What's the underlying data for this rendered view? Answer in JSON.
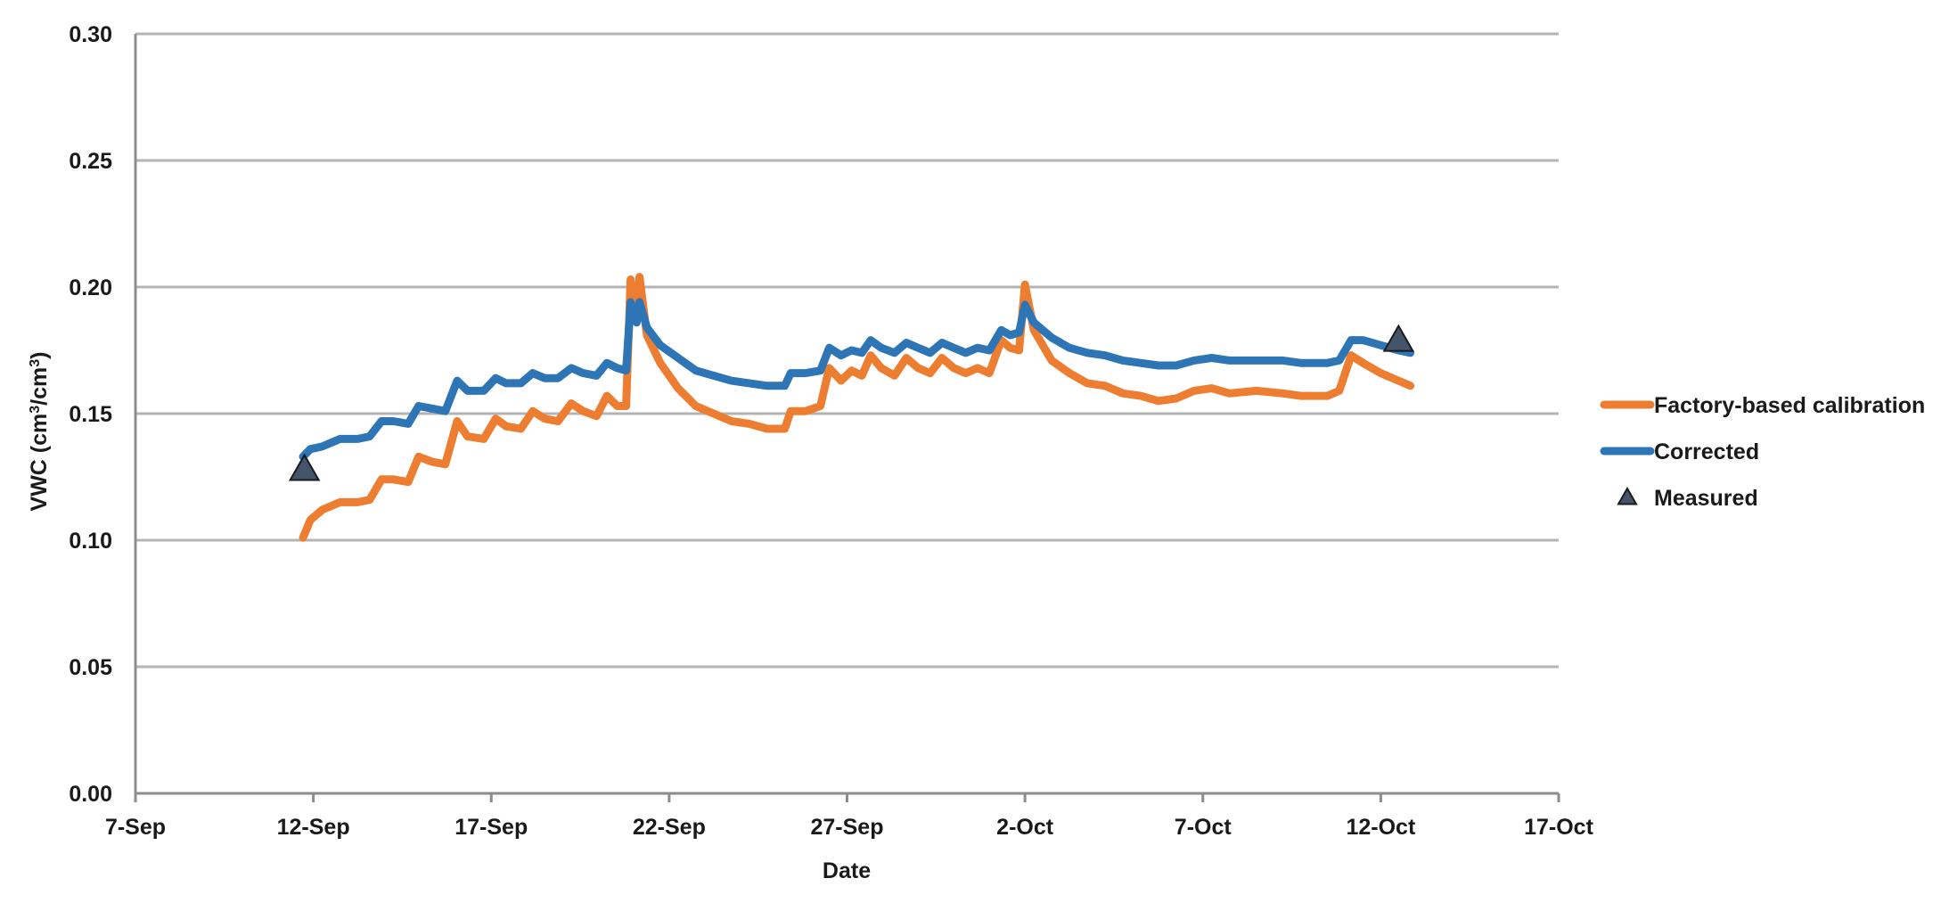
{
  "chart_data": {
    "type": "line",
    "title": "",
    "xlabel": "Date",
    "ylabel_parts": [
      "VWC (cm",
      "3",
      "/cm",
      "3",
      ")"
    ],
    "x_is_date": true,
    "xlim": [
      "2016-09-07",
      "2016-10-17"
    ],
    "ylim": [
      0,
      0.3
    ],
    "y_ticks": [
      0.0,
      0.05,
      0.1,
      0.15,
      0.2,
      0.25,
      0.3
    ],
    "y_tick_labels": [
      "0.00",
      "0.05",
      "0.10",
      "0.15",
      "0.20",
      "0.25",
      "0.30"
    ],
    "x_ticks": [
      "2016-09-07",
      "2016-09-12",
      "2016-09-17",
      "2016-09-22",
      "2016-09-27",
      "2016-10-02",
      "2016-10-07",
      "2016-10-12",
      "2016-10-17"
    ],
    "x_tick_labels": [
      "7-Sep",
      "12-Sep",
      "17-Sep",
      "22-Sep",
      "27-Sep",
      "2-Oct",
      "7-Oct",
      "12-Oct",
      "17-Oct"
    ],
    "grid": "horizontal",
    "legend_position": "right",
    "series": [
      {
        "name": "Factory-based calibration",
        "color": "#ed7d31",
        "style": "line",
        "points": [
          [
            "2016-09-11 17:00",
            0.101
          ],
          [
            "2016-09-11 22:00",
            0.108
          ],
          [
            "2016-09-12 06:00",
            0.112
          ],
          [
            "2016-09-12 18:00",
            0.115
          ],
          [
            "2016-09-13 06:00",
            0.115
          ],
          [
            "2016-09-13 14:00",
            0.116
          ],
          [
            "2016-09-13 22:00",
            0.124
          ],
          [
            "2016-09-14 06:00",
            0.124
          ],
          [
            "2016-09-14 16:00",
            0.123
          ],
          [
            "2016-09-14 23:00",
            0.133
          ],
          [
            "2016-09-15 08:00",
            0.131
          ],
          [
            "2016-09-15 17:00",
            0.13
          ],
          [
            "2016-09-16 01:00",
            0.147
          ],
          [
            "2016-09-16 08:00",
            0.141
          ],
          [
            "2016-09-16 19:00",
            0.14
          ],
          [
            "2016-09-17 03:00",
            0.148
          ],
          [
            "2016-09-17 10:00",
            0.145
          ],
          [
            "2016-09-17 20:00",
            0.144
          ],
          [
            "2016-09-18 04:00",
            0.151
          ],
          [
            "2016-09-18 12:00",
            0.148
          ],
          [
            "2016-09-18 21:00",
            0.147
          ],
          [
            "2016-09-19 06:00",
            0.154
          ],
          [
            "2016-09-19 14:00",
            0.151
          ],
          [
            "2016-09-19 23:00",
            0.149
          ],
          [
            "2016-09-20 06:00",
            0.157
          ],
          [
            "2016-09-20 13:00",
            0.153
          ],
          [
            "2016-09-20 19:00",
            0.153
          ],
          [
            "2016-09-20 22:00",
            0.203
          ],
          [
            "2016-09-21 02:00",
            0.188
          ],
          [
            "2016-09-21 04:00",
            0.204
          ],
          [
            "2016-09-21 09:00",
            0.181
          ],
          [
            "2016-09-21 18:00",
            0.17
          ],
          [
            "2016-09-22 06:00",
            0.16
          ],
          [
            "2016-09-22 18:00",
            0.153
          ],
          [
            "2016-09-23 06:00",
            0.15
          ],
          [
            "2016-09-23 18:00",
            0.147
          ],
          [
            "2016-09-24 06:00",
            0.146
          ],
          [
            "2016-09-24 18:00",
            0.144
          ],
          [
            "2016-09-25 06:00",
            0.144
          ],
          [
            "2016-09-25 10:00",
            0.151
          ],
          [
            "2016-09-25 20:00",
            0.151
          ],
          [
            "2016-09-26 06:00",
            0.153
          ],
          [
            "2016-09-26 12:00",
            0.168
          ],
          [
            "2016-09-26 20:00",
            0.163
          ],
          [
            "2016-09-27 03:00",
            0.167
          ],
          [
            "2016-09-27 10:00",
            0.165
          ],
          [
            "2016-09-27 16:00",
            0.173
          ],
          [
            "2016-09-27 23:00",
            0.168
          ],
          [
            "2016-09-28 08:00",
            0.165
          ],
          [
            "2016-09-28 16:00",
            0.172
          ],
          [
            "2016-09-29 00:00",
            0.168
          ],
          [
            "2016-09-29 08:00",
            0.166
          ],
          [
            "2016-09-29 16:00",
            0.172
          ],
          [
            "2016-09-30 00:00",
            0.168
          ],
          [
            "2016-09-30 08:00",
            0.166
          ],
          [
            "2016-09-30 16:00",
            0.168
          ],
          [
            "2016-10-01 00:00",
            0.166
          ],
          [
            "2016-10-01 08:00",
            0.179
          ],
          [
            "2016-10-01 14:00",
            0.176
          ],
          [
            "2016-10-01 20:00",
            0.175
          ],
          [
            "2016-10-02 00:00",
            0.201
          ],
          [
            "2016-10-02 06:00",
            0.183
          ],
          [
            "2016-10-02 18:00",
            0.171
          ],
          [
            "2016-10-03 06:00",
            0.166
          ],
          [
            "2016-10-03 18:00",
            0.162
          ],
          [
            "2016-10-04 06:00",
            0.161
          ],
          [
            "2016-10-04 18:00",
            0.158
          ],
          [
            "2016-10-05 06:00",
            0.157
          ],
          [
            "2016-10-05 18:00",
            0.155
          ],
          [
            "2016-10-06 06:00",
            0.156
          ],
          [
            "2016-10-06 18:00",
            0.159
          ],
          [
            "2016-10-07 06:00",
            0.16
          ],
          [
            "2016-10-07 18:00",
            0.158
          ],
          [
            "2016-10-08 12:00",
            0.159
          ],
          [
            "2016-10-09 06:00",
            0.158
          ],
          [
            "2016-10-09 18:00",
            0.157
          ],
          [
            "2016-10-10 12:00",
            0.157
          ],
          [
            "2016-10-10 20:00",
            0.159
          ],
          [
            "2016-10-11 04:00",
            0.173
          ],
          [
            "2016-10-11 12:00",
            0.17
          ],
          [
            "2016-10-12 00:00",
            0.166
          ],
          [
            "2016-10-12 12:00",
            0.163
          ],
          [
            "2016-10-12 20:00",
            0.161
          ]
        ]
      },
      {
        "name": "Corrected",
        "color": "#2e75b6",
        "style": "line",
        "points": [
          [
            "2016-09-11 17:00",
            0.133
          ],
          [
            "2016-09-11 22:00",
            0.136
          ],
          [
            "2016-09-12 06:00",
            0.137
          ],
          [
            "2016-09-12 18:00",
            0.14
          ],
          [
            "2016-09-13 06:00",
            0.14
          ],
          [
            "2016-09-13 14:00",
            0.141
          ],
          [
            "2016-09-13 22:00",
            0.147
          ],
          [
            "2016-09-14 06:00",
            0.147
          ],
          [
            "2016-09-14 16:00",
            0.146
          ],
          [
            "2016-09-14 23:00",
            0.153
          ],
          [
            "2016-09-15 08:00",
            0.152
          ],
          [
            "2016-09-15 17:00",
            0.151
          ],
          [
            "2016-09-16 01:00",
            0.163
          ],
          [
            "2016-09-16 08:00",
            0.159
          ],
          [
            "2016-09-16 19:00",
            0.159
          ],
          [
            "2016-09-17 03:00",
            0.164
          ],
          [
            "2016-09-17 10:00",
            0.162
          ],
          [
            "2016-09-17 20:00",
            0.162
          ],
          [
            "2016-09-18 04:00",
            0.166
          ],
          [
            "2016-09-18 12:00",
            0.164
          ],
          [
            "2016-09-18 21:00",
            0.164
          ],
          [
            "2016-09-19 06:00",
            0.168
          ],
          [
            "2016-09-19 14:00",
            0.166
          ],
          [
            "2016-09-19 23:00",
            0.165
          ],
          [
            "2016-09-20 06:00",
            0.17
          ],
          [
            "2016-09-20 13:00",
            0.168
          ],
          [
            "2016-09-20 19:00",
            0.167
          ],
          [
            "2016-09-20 22:00",
            0.194
          ],
          [
            "2016-09-21 02:00",
            0.186
          ],
          [
            "2016-09-21 04:00",
            0.194
          ],
          [
            "2016-09-21 09:00",
            0.184
          ],
          [
            "2016-09-21 18:00",
            0.177
          ],
          [
            "2016-09-22 06:00",
            0.172
          ],
          [
            "2016-09-22 18:00",
            0.167
          ],
          [
            "2016-09-23 06:00",
            0.165
          ],
          [
            "2016-09-23 18:00",
            0.163
          ],
          [
            "2016-09-24 06:00",
            0.162
          ],
          [
            "2016-09-24 18:00",
            0.161
          ],
          [
            "2016-09-25 06:00",
            0.161
          ],
          [
            "2016-09-25 10:00",
            0.166
          ],
          [
            "2016-09-25 20:00",
            0.166
          ],
          [
            "2016-09-26 06:00",
            0.167
          ],
          [
            "2016-09-26 12:00",
            0.176
          ],
          [
            "2016-09-26 20:00",
            0.173
          ],
          [
            "2016-09-27 03:00",
            0.175
          ],
          [
            "2016-09-27 10:00",
            0.174
          ],
          [
            "2016-09-27 16:00",
            0.179
          ],
          [
            "2016-09-27 23:00",
            0.176
          ],
          [
            "2016-09-28 08:00",
            0.174
          ],
          [
            "2016-09-28 16:00",
            0.178
          ],
          [
            "2016-09-29 00:00",
            0.176
          ],
          [
            "2016-09-29 08:00",
            0.174
          ],
          [
            "2016-09-29 16:00",
            0.178
          ],
          [
            "2016-09-30 00:00",
            0.176
          ],
          [
            "2016-09-30 08:00",
            0.174
          ],
          [
            "2016-09-30 16:00",
            0.176
          ],
          [
            "2016-10-01 00:00",
            0.175
          ],
          [
            "2016-10-01 08:00",
            0.183
          ],
          [
            "2016-10-01 14:00",
            0.181
          ],
          [
            "2016-10-01 20:00",
            0.182
          ],
          [
            "2016-10-02 00:00",
            0.193
          ],
          [
            "2016-10-02 06:00",
            0.186
          ],
          [
            "2016-10-02 18:00",
            0.18
          ],
          [
            "2016-10-03 06:00",
            0.176
          ],
          [
            "2016-10-03 18:00",
            0.174
          ],
          [
            "2016-10-04 06:00",
            0.173
          ],
          [
            "2016-10-04 18:00",
            0.171
          ],
          [
            "2016-10-05 06:00",
            0.17
          ],
          [
            "2016-10-05 18:00",
            0.169
          ],
          [
            "2016-10-06 06:00",
            0.169
          ],
          [
            "2016-10-06 18:00",
            0.171
          ],
          [
            "2016-10-07 06:00",
            0.172
          ],
          [
            "2016-10-07 18:00",
            0.171
          ],
          [
            "2016-10-08 12:00",
            0.171
          ],
          [
            "2016-10-09 06:00",
            0.171
          ],
          [
            "2016-10-09 18:00",
            0.17
          ],
          [
            "2016-10-10 12:00",
            0.17
          ],
          [
            "2016-10-10 20:00",
            0.171
          ],
          [
            "2016-10-11 04:00",
            0.179
          ],
          [
            "2016-10-11 12:00",
            0.179
          ],
          [
            "2016-10-12 00:00",
            0.177
          ],
          [
            "2016-10-12 12:00",
            0.175
          ],
          [
            "2016-10-12 20:00",
            0.174
          ]
        ]
      },
      {
        "name": "Measured",
        "color": "#44546a",
        "style": "marker-triangle",
        "points": [
          [
            "2016-09-11 18:00",
            0.128
          ],
          [
            "2016-10-12 12:00",
            0.179
          ]
        ]
      }
    ]
  }
}
